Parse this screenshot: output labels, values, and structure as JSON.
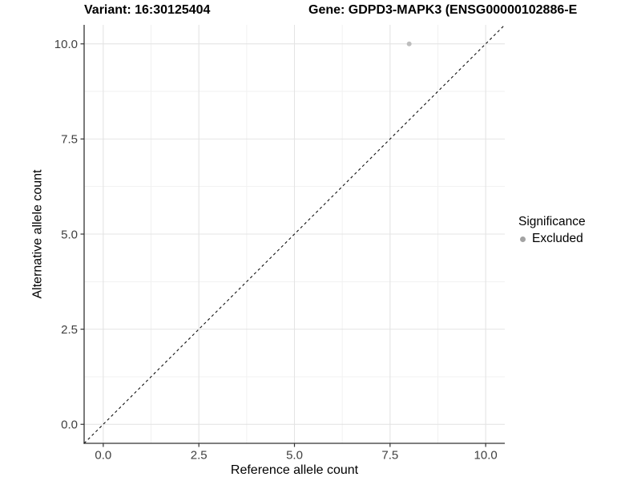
{
  "title": {
    "variant": "Variant: 16:30125404",
    "gene": "Gene: GDPD3-MAPK3 (ENSG00000102886-E"
  },
  "axes": {
    "x_label": "Reference allele count",
    "y_label": "Alternative allele count"
  },
  "legend": {
    "title": "Significance",
    "items": [
      {
        "label": "Excluded",
        "color": "#a3a3a3"
      }
    ]
  },
  "colors": {
    "point": "#bdbdbd",
    "grid_major": "#e4e4e4",
    "grid_minor": "#f1f1f1",
    "axis_line": "#333333",
    "tick_mark": "#333333",
    "tick_label": "#404040",
    "reference_line": "#111111"
  },
  "chart_data": {
    "type": "scatter",
    "title": "Variant: 16:30125404   Gene: GDPD3-MAPK3 (ENSG00000102886-E",
    "xlabel": "Reference allele count",
    "ylabel": "Alternative allele count",
    "xlim": [
      -0.5,
      10.5
    ],
    "ylim": [
      -0.5,
      10.5
    ],
    "x_ticks": {
      "values": [
        0,
        2.5,
        5,
        7.5,
        10
      ],
      "labels": [
        "0.0",
        "2.5",
        "5.0",
        "7.5",
        "10.0"
      ]
    },
    "y_ticks": {
      "values": [
        0,
        2.5,
        5,
        7.5,
        10
      ],
      "labels": [
        "0.0",
        "2.5",
        "5.0",
        "7.5",
        "10.0"
      ]
    },
    "x_minor": [
      1.25,
      3.75,
      6.25,
      8.75
    ],
    "y_minor": [
      1.25,
      3.75,
      6.25,
      8.75
    ],
    "grid": "major+minor",
    "legend_position": "right-center",
    "series": [
      {
        "name": "Excluded",
        "color": "#bdbdbd",
        "points": [
          {
            "x": 8,
            "y": 10
          }
        ]
      }
    ],
    "reference_line": {
      "name": "identity y=x",
      "style": "dashed",
      "from": [
        -0.5,
        -0.5
      ],
      "to": [
        10.5,
        10.5
      ]
    }
  }
}
